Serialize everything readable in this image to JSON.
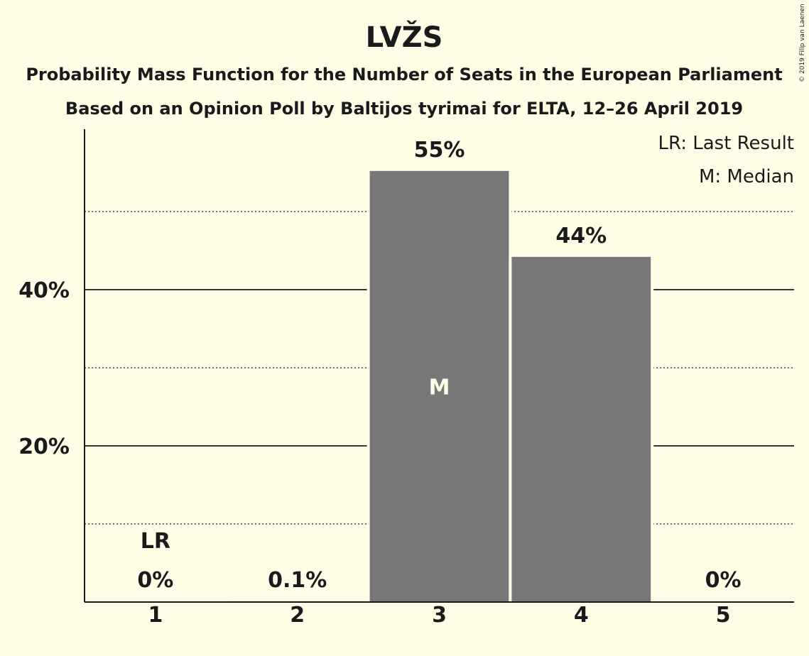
{
  "chart_data": {
    "type": "bar",
    "title": "LVŽS",
    "subtitle_1": "Probability Mass Function for the Number of Seats in the European Parliament",
    "subtitle_2": "Based on an Opinion Poll by Baltijos tyrimai for ELTA, 12–26 April 2019",
    "categories": [
      "1",
      "2",
      "3",
      "4",
      "5"
    ],
    "values": [
      0,
      0.1,
      55.2,
      44.2,
      0
    ],
    "value_labels": [
      "0%",
      "0.1%",
      "55%",
      "44%",
      "0%"
    ],
    "ylim": [
      0,
      60
    ],
    "y_major_ticks": [
      {
        "value": 20,
        "label": "20%"
      },
      {
        "value": 40,
        "label": "40%"
      }
    ],
    "y_minor_gridlines": [
      10,
      30,
      50
    ],
    "last_result_category": "1",
    "last_result_marker": "LR",
    "median_category": "3",
    "median_marker": "M",
    "legend": [
      "LR: Last Result",
      "M: Median"
    ],
    "legend_placement": "top-right",
    "bar_color": "#777777",
    "background_color": "#FFFDE6",
    "copyright": "© 2019 Filip van Laenen"
  }
}
